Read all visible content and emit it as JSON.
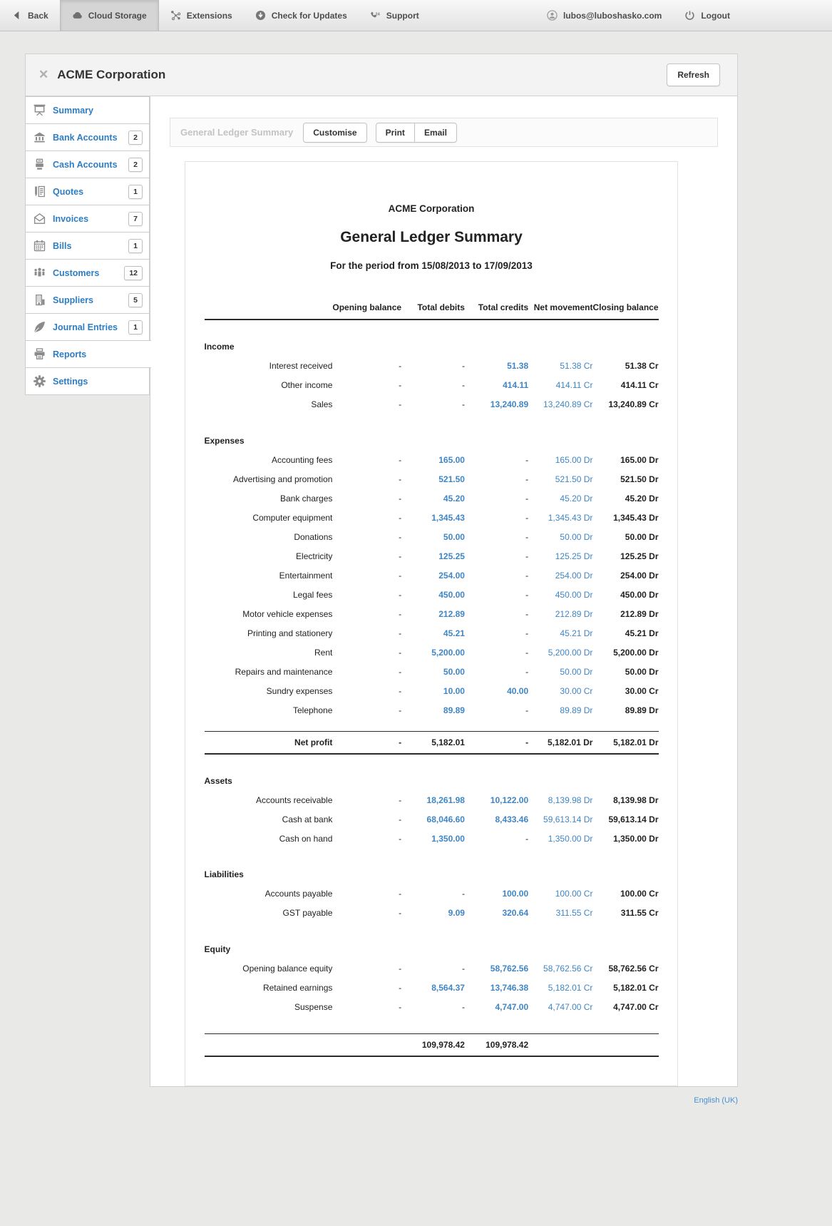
{
  "topbar": {
    "back_label": "Back",
    "items": [
      {
        "label": "Cloud Storage",
        "icon": "cloud-icon",
        "active": true
      },
      {
        "label": "Extensions",
        "icon": "extensions-icon",
        "active": false
      },
      {
        "label": "Check for Updates",
        "icon": "update-icon",
        "active": false
      },
      {
        "label": "Support",
        "icon": "support-icon",
        "active": false
      }
    ],
    "user_email": "lubos@luboshasko.com",
    "logout_label": "Logout"
  },
  "window": {
    "title": "ACME Corporation",
    "refresh_label": "Refresh"
  },
  "sidebar": {
    "items": [
      {
        "label": "Summary",
        "icon": "summary-icon",
        "count": null,
        "active": false
      },
      {
        "label": "Bank Accounts",
        "icon": "bank-icon",
        "count": "2",
        "active": false
      },
      {
        "label": "Cash Accounts",
        "icon": "cash-icon",
        "count": "2",
        "active": false
      },
      {
        "label": "Quotes",
        "icon": "quotes-icon",
        "count": "1",
        "active": false
      },
      {
        "label": "Invoices",
        "icon": "invoices-icon",
        "count": "7",
        "active": false
      },
      {
        "label": "Bills",
        "icon": "bills-icon",
        "count": "1",
        "active": false
      },
      {
        "label": "Customers",
        "icon": "customers-icon",
        "count": "12",
        "active": false
      },
      {
        "label": "Suppliers",
        "icon": "suppliers-icon",
        "count": "5",
        "active": false
      },
      {
        "label": "Journal Entries",
        "icon": "journal-icon",
        "count": "1",
        "active": false
      },
      {
        "label": "Reports",
        "icon": "reports-icon",
        "count": null,
        "active": true
      },
      {
        "label": "Settings",
        "icon": "settings-icon",
        "count": null,
        "active": false
      }
    ]
  },
  "toolbar": {
    "report_name": "General Ledger Summary",
    "customise_label": "Customise",
    "print_label": "Print",
    "email_label": "Email"
  },
  "report": {
    "company": "ACME Corporation",
    "title": "General Ledger Summary",
    "period": "For the period from 15/08/2013 to 17/09/2013",
    "columns": [
      "Opening balance",
      "Total debits",
      "Total credits",
      "Net movement",
      "Closing balance"
    ],
    "body": [
      {
        "type": "section",
        "label": "Income",
        "rows": [
          {
            "label": "Interest received",
            "values": [
              "-",
              "-",
              "51.38",
              "51.38 Cr",
              "51.38 Cr"
            ]
          },
          {
            "label": "Other income",
            "values": [
              "-",
              "-",
              "414.11",
              "414.11 Cr",
              "414.11 Cr"
            ]
          },
          {
            "label": "Sales",
            "values": [
              "-",
              "-",
              "13,240.89",
              "13,240.89 Cr",
              "13,240.89 Cr"
            ]
          }
        ]
      },
      {
        "type": "section",
        "label": "Expenses",
        "rows": [
          {
            "label": "Accounting fees",
            "values": [
              "-",
              "165.00",
              "-",
              "165.00 Dr",
              "165.00 Dr"
            ]
          },
          {
            "label": "Advertising and promotion",
            "values": [
              "-",
              "521.50",
              "-",
              "521.50 Dr",
              "521.50 Dr"
            ]
          },
          {
            "label": "Bank charges",
            "values": [
              "-",
              "45.20",
              "-",
              "45.20 Dr",
              "45.20 Dr"
            ]
          },
          {
            "label": "Computer equipment",
            "values": [
              "-",
              "1,345.43",
              "-",
              "1,345.43 Dr",
              "1,345.43 Dr"
            ]
          },
          {
            "label": "Donations",
            "values": [
              "-",
              "50.00",
              "-",
              "50.00 Dr",
              "50.00 Dr"
            ]
          },
          {
            "label": "Electricity",
            "values": [
              "-",
              "125.25",
              "-",
              "125.25 Dr",
              "125.25 Dr"
            ]
          },
          {
            "label": "Entertainment",
            "values": [
              "-",
              "254.00",
              "-",
              "254.00 Dr",
              "254.00 Dr"
            ]
          },
          {
            "label": "Legal fees",
            "values": [
              "-",
              "450.00",
              "-",
              "450.00 Dr",
              "450.00 Dr"
            ]
          },
          {
            "label": "Motor vehicle expenses",
            "values": [
              "-",
              "212.89",
              "-",
              "212.89 Dr",
              "212.89 Dr"
            ]
          },
          {
            "label": "Printing and stationery",
            "values": [
              "-",
              "45.21",
              "-",
              "45.21 Dr",
              "45.21 Dr"
            ]
          },
          {
            "label": "Rent",
            "values": [
              "-",
              "5,200.00",
              "-",
              "5,200.00 Dr",
              "5,200.00 Dr"
            ]
          },
          {
            "label": "Repairs and maintenance",
            "values": [
              "-",
              "50.00",
              "-",
              "50.00 Dr",
              "50.00 Dr"
            ]
          },
          {
            "label": "Sundry expenses",
            "values": [
              "-",
              "10.00",
              "40.00",
              "30.00 Cr",
              "30.00 Cr"
            ]
          },
          {
            "label": "Telephone",
            "values": [
              "-",
              "89.89",
              "-",
              "89.89 Dr",
              "89.89 Dr"
            ]
          }
        ]
      },
      {
        "type": "netprofit",
        "label": "Net profit",
        "values": [
          "-",
          "5,182.01",
          "-",
          "5,182.01 Dr",
          "5,182.01 Dr"
        ]
      },
      {
        "type": "section",
        "label": "Assets",
        "rows": [
          {
            "label": "Accounts receivable",
            "values": [
              "-",
              "18,261.98",
              "10,122.00",
              "8,139.98 Dr",
              "8,139.98 Dr"
            ]
          },
          {
            "label": "Cash at bank",
            "values": [
              "-",
              "68,046.60",
              "8,433.46",
              "59,613.14 Dr",
              "59,613.14 Dr"
            ]
          },
          {
            "label": "Cash on hand",
            "values": [
              "-",
              "1,350.00",
              "-",
              "1,350.00 Dr",
              "1,350.00 Dr"
            ]
          }
        ]
      },
      {
        "type": "section",
        "label": "Liabilities",
        "rows": [
          {
            "label": "Accounts payable",
            "values": [
              "-",
              "-",
              "100.00",
              "100.00 Cr",
              "100.00 Cr"
            ]
          },
          {
            "label": "GST payable",
            "values": [
              "-",
              "9.09",
              "320.64",
              "311.55 Cr",
              "311.55 Cr"
            ]
          }
        ]
      },
      {
        "type": "section",
        "label": "Equity",
        "rows": [
          {
            "label": "Opening balance equity",
            "values": [
              "-",
              "-",
              "58,762.56",
              "58,762.56 Cr",
              "58,762.56 Cr"
            ]
          },
          {
            "label": "Retained earnings",
            "values": [
              "-",
              "8,564.37",
              "13,746.38",
              "5,182.01 Cr",
              "5,182.01 Cr"
            ]
          },
          {
            "label": "Suspense",
            "values": [
              "-",
              "-",
              "4,747.00",
              "4,747.00 Cr",
              "4,747.00 Cr"
            ]
          }
        ]
      },
      {
        "type": "total",
        "label": "",
        "values": [
          "",
          "109,978.42",
          "109,978.42",
          "",
          ""
        ]
      }
    ]
  },
  "footer": {
    "language": "English (UK)"
  },
  "colors": {
    "link_blue": "#3e86c6",
    "sidebar_blue": "#2d7dc3"
  }
}
